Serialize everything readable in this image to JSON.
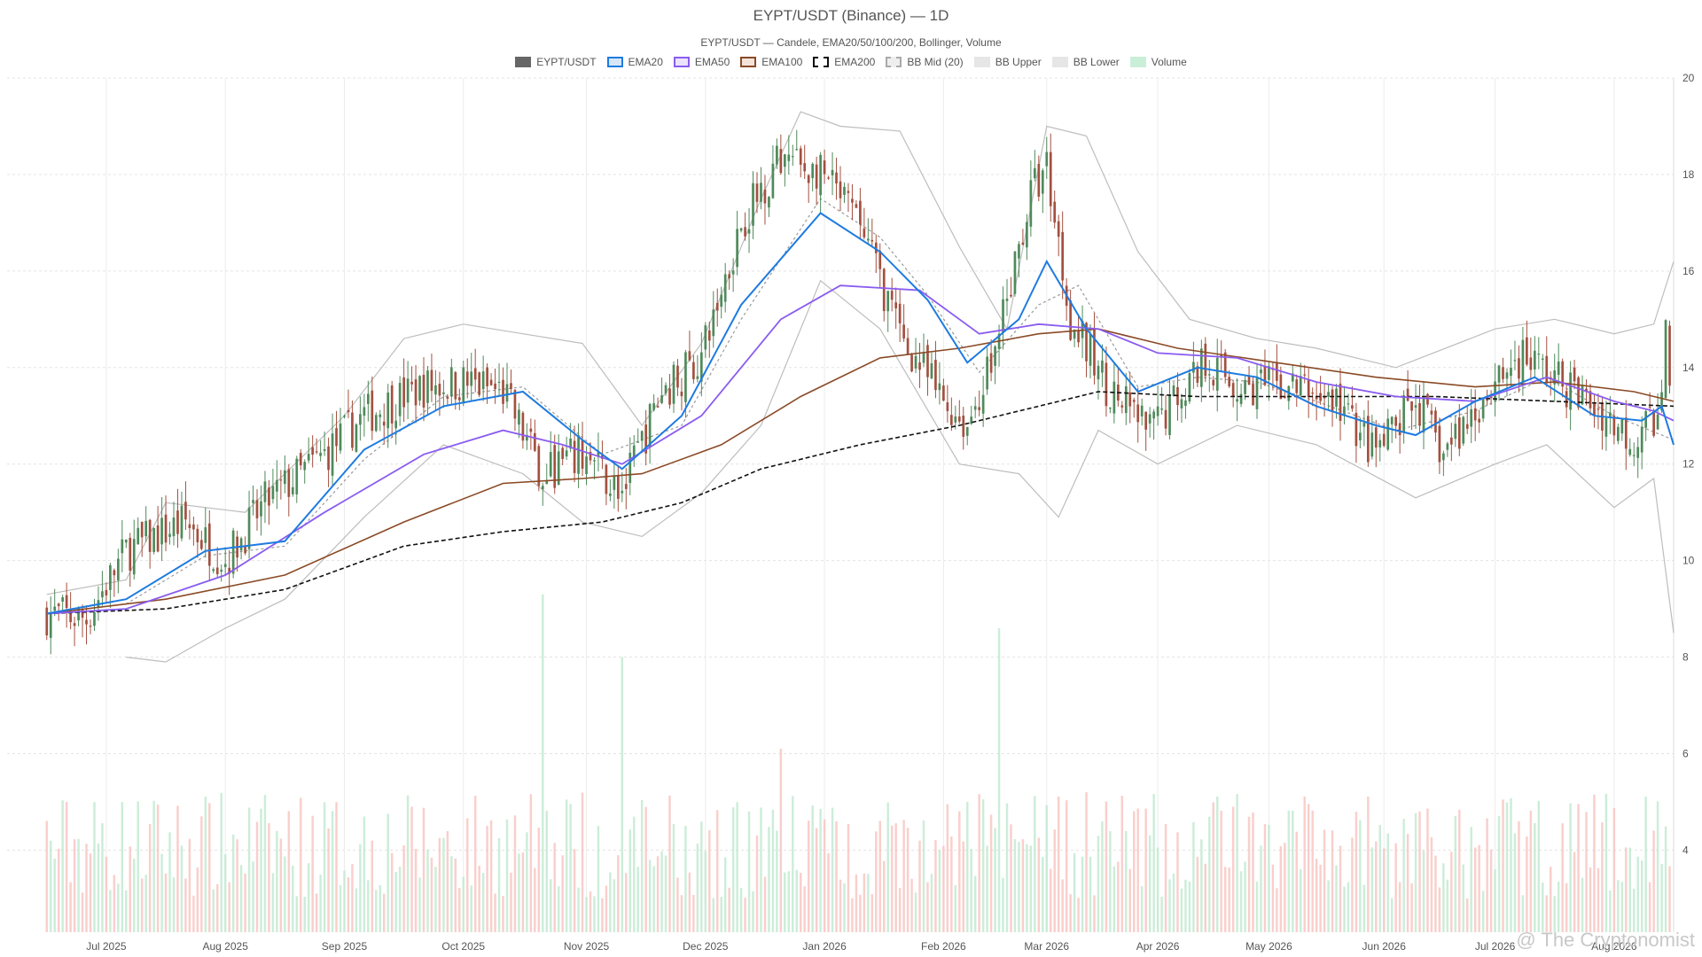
{
  "header": {
    "title": "EYPT/USDT (Binance) — 1D",
    "subtitle": "EYPT/USDT — Candele, EMA20/50/100/200, Bollinger, Volume"
  },
  "legend": [
    {
      "key": "candles",
      "label": "EYPT/USDT",
      "fill": "#666666",
      "border": "#666666",
      "style": "solid"
    },
    {
      "key": "ema20",
      "label": "EMA20",
      "fill": "#d6e6f7",
      "border": "#1e7be0",
      "style": "solid"
    },
    {
      "key": "ema50",
      "label": "EMA50",
      "fill": "#ebe2fb",
      "border": "#8a5cf0",
      "style": "solid"
    },
    {
      "key": "ema100",
      "label": "EMA100",
      "fill": "#f3e4da",
      "border": "#8a4a26",
      "style": "solid"
    },
    {
      "key": "ema200",
      "label": "EMA200",
      "fill": "#ffffff",
      "border": "#111111",
      "style": "dashed"
    },
    {
      "key": "bbmid",
      "label": "BB Mid (20)",
      "fill": "#eeeeee",
      "border": "#aaaaaa",
      "style": "dashed"
    },
    {
      "key": "bbupper",
      "label": "BB Upper",
      "fill": "#e6e6e6",
      "border": "#e6e6e6",
      "style": "solid"
    },
    {
      "key": "bblower",
      "label": "BB Lower",
      "fill": "#e6e6e6",
      "border": "#e6e6e6",
      "style": "solid"
    },
    {
      "key": "volume",
      "label": "Volume",
      "fill": "#c9efd9",
      "border": "#c9efd9",
      "style": "solid"
    }
  ],
  "watermark": "@ The Cryptonomist",
  "chart_data": {
    "type": "candlestick",
    "ylim": [
      2.3,
      20
    ],
    "yticks": [
      4,
      6,
      8,
      10,
      12,
      14,
      16,
      18,
      20
    ],
    "grid": true,
    "legend_position": "top-center",
    "xlim_days": [
      -10,
      410
    ],
    "months": [
      {
        "label": "Jul 2025",
        "day": 15
      },
      {
        "label": "Aug 2025",
        "day": 45
      },
      {
        "label": "Sep 2025",
        "day": 75
      },
      {
        "label": "Oct 2025",
        "day": 105
      },
      {
        "label": "Nov 2025",
        "day": 136
      },
      {
        "label": "Dec 2025",
        "day": 166
      },
      {
        "label": "Jan 2026",
        "day": 196
      },
      {
        "label": "Feb 2026",
        "day": 226
      },
      {
        "label": "Mar 2026",
        "day": 252
      },
      {
        "label": "Apr 2026",
        "day": 280
      },
      {
        "label": "May 2026",
        "day": 308
      },
      {
        "label": "Jun 2026",
        "day": 337
      },
      {
        "label": "Jul 2026",
        "day": 365
      },
      {
        "label": "Aug 2026",
        "day": 395
      }
    ],
    "price_path": [
      {
        "day": 0,
        "close": 8.9
      },
      {
        "day": 10,
        "close": 8.8
      },
      {
        "day": 20,
        "close": 10.2
      },
      {
        "day": 35,
        "close": 10.8
      },
      {
        "day": 45,
        "close": 10.0
      },
      {
        "day": 55,
        "close": 11.2
      },
      {
        "day": 70,
        "close": 12.2
      },
      {
        "day": 80,
        "close": 13.0
      },
      {
        "day": 95,
        "close": 13.6
      },
      {
        "day": 105,
        "close": 13.7
      },
      {
        "day": 115,
        "close": 13.5
      },
      {
        "day": 125,
        "close": 11.8
      },
      {
        "day": 135,
        "close": 12.2
      },
      {
        "day": 145,
        "close": 11.4
      },
      {
        "day": 155,
        "close": 13.5
      },
      {
        "day": 165,
        "close": 14.2
      },
      {
        "day": 175,
        "close": 17.0
      },
      {
        "day": 185,
        "close": 18.4
      },
      {
        "day": 195,
        "close": 18.0
      },
      {
        "day": 205,
        "close": 17.0
      },
      {
        "day": 215,
        "close": 14.7
      },
      {
        "day": 225,
        "close": 13.4
      },
      {
        "day": 232,
        "close": 12.8
      },
      {
        "day": 240,
        "close": 14.6
      },
      {
        "day": 248,
        "close": 17.6
      },
      {
        "day": 252,
        "close": 18.2
      },
      {
        "day": 258,
        "close": 15.0
      },
      {
        "day": 268,
        "close": 13.5
      },
      {
        "day": 278,
        "close": 12.7
      },
      {
        "day": 292,
        "close": 14.2
      },
      {
        "day": 300,
        "close": 13.6
      },
      {
        "day": 315,
        "close": 13.6
      },
      {
        "day": 325,
        "close": 13.3
      },
      {
        "day": 335,
        "close": 12.2
      },
      {
        "day": 345,
        "close": 13.3
      },
      {
        "day": 352,
        "close": 12.2
      },
      {
        "day": 362,
        "close": 13.4
      },
      {
        "day": 372,
        "close": 14.3
      },
      {
        "day": 380,
        "close": 13.8
      },
      {
        "day": 390,
        "close": 13.2
      },
      {
        "day": 400,
        "close": 12.5
      },
      {
        "day": 406,
        "close": 13.0
      },
      {
        "day": 408,
        "close": 14.7
      },
      {
        "day": 409,
        "close": 13.7
      }
    ],
    "ema20": [
      {
        "day": 0,
        "value": 8.9
      },
      {
        "day": 20,
        "value": 9.2
      },
      {
        "day": 40,
        "value": 10.2
      },
      {
        "day": 60,
        "value": 10.4
      },
      {
        "day": 80,
        "value": 12.3
      },
      {
        "day": 100,
        "value": 13.2
      },
      {
        "day": 120,
        "value": 13.5
      },
      {
        "day": 135,
        "value": 12.5
      },
      {
        "day": 145,
        "value": 11.9
      },
      {
        "day": 160,
        "value": 13.0
      },
      {
        "day": 175,
        "value": 15.3
      },
      {
        "day": 195,
        "value": 17.2
      },
      {
        "day": 210,
        "value": 16.4
      },
      {
        "day": 222,
        "value": 15.4
      },
      {
        "day": 232,
        "value": 14.1
      },
      {
        "day": 245,
        "value": 15.0
      },
      {
        "day": 252,
        "value": 16.2
      },
      {
        "day": 262,
        "value": 14.8
      },
      {
        "day": 275,
        "value": 13.5
      },
      {
        "day": 290,
        "value": 14.0
      },
      {
        "day": 305,
        "value": 13.8
      },
      {
        "day": 320,
        "value": 13.2
      },
      {
        "day": 335,
        "value": 12.8
      },
      {
        "day": 345,
        "value": 12.6
      },
      {
        "day": 360,
        "value": 13.3
      },
      {
        "day": 375,
        "value": 13.8
      },
      {
        "day": 390,
        "value": 13.0
      },
      {
        "day": 402,
        "value": 12.9
      },
      {
        "day": 407,
        "value": 13.2
      },
      {
        "day": 410,
        "value": 12.4
      }
    ],
    "ema50": [
      {
        "day": 0,
        "value": 8.9
      },
      {
        "day": 20,
        "value": 9.0
      },
      {
        "day": 45,
        "value": 9.7
      },
      {
        "day": 70,
        "value": 11.0
      },
      {
        "day": 95,
        "value": 12.2
      },
      {
        "day": 115,
        "value": 12.7
      },
      {
        "day": 130,
        "value": 12.4
      },
      {
        "day": 145,
        "value": 12.0
      },
      {
        "day": 165,
        "value": 13.0
      },
      {
        "day": 185,
        "value": 15.0
      },
      {
        "day": 200,
        "value": 15.7
      },
      {
        "day": 220,
        "value": 15.6
      },
      {
        "day": 235,
        "value": 14.7
      },
      {
        "day": 250,
        "value": 14.9
      },
      {
        "day": 265,
        "value": 14.8
      },
      {
        "day": 280,
        "value": 14.3
      },
      {
        "day": 300,
        "value": 14.2
      },
      {
        "day": 320,
        "value": 13.7
      },
      {
        "day": 340,
        "value": 13.4
      },
      {
        "day": 360,
        "value": 13.3
      },
      {
        "day": 378,
        "value": 13.8
      },
      {
        "day": 395,
        "value": 13.3
      },
      {
        "day": 405,
        "value": 13.1
      },
      {
        "day": 410,
        "value": 12.9
      }
    ],
    "ema100": [
      {
        "day": 0,
        "value": 8.9
      },
      {
        "day": 30,
        "value": 9.2
      },
      {
        "day": 60,
        "value": 9.7
      },
      {
        "day": 90,
        "value": 10.8
      },
      {
        "day": 115,
        "value": 11.6
      },
      {
        "day": 135,
        "value": 11.7
      },
      {
        "day": 150,
        "value": 11.8
      },
      {
        "day": 170,
        "value": 12.4
      },
      {
        "day": 190,
        "value": 13.4
      },
      {
        "day": 210,
        "value": 14.2
      },
      {
        "day": 230,
        "value": 14.4
      },
      {
        "day": 250,
        "value": 14.7
      },
      {
        "day": 265,
        "value": 14.8
      },
      {
        "day": 285,
        "value": 14.4
      },
      {
        "day": 310,
        "value": 14.1
      },
      {
        "day": 335,
        "value": 13.8
      },
      {
        "day": 360,
        "value": 13.6
      },
      {
        "day": 380,
        "value": 13.7
      },
      {
        "day": 400,
        "value": 13.5
      },
      {
        "day": 410,
        "value": 13.3
      }
    ],
    "ema200": [
      {
        "day": 0,
        "value": 8.9
      },
      {
        "day": 30,
        "value": 9.0
      },
      {
        "day": 60,
        "value": 9.4
      },
      {
        "day": 90,
        "value": 10.3
      },
      {
        "day": 115,
        "value": 10.6
      },
      {
        "day": 140,
        "value": 10.8
      },
      {
        "day": 160,
        "value": 11.2
      },
      {
        "day": 180,
        "value": 11.9
      },
      {
        "day": 205,
        "value": 12.4
      },
      {
        "day": 230,
        "value": 12.8
      },
      {
        "day": 250,
        "value": 13.2
      },
      {
        "day": 265,
        "value": 13.5
      },
      {
        "day": 290,
        "value": 13.4
      },
      {
        "day": 320,
        "value": 13.4
      },
      {
        "day": 350,
        "value": 13.4
      },
      {
        "day": 380,
        "value": 13.3
      },
      {
        "day": 410,
        "value": 13.2
      }
    ],
    "bb_mid": [
      {
        "day": 0,
        "value": 8.9
      },
      {
        "day": 20,
        "value": 9.1
      },
      {
        "day": 40,
        "value": 10.1
      },
      {
        "day": 60,
        "value": 10.3
      },
      {
        "day": 80,
        "value": 12.1
      },
      {
        "day": 100,
        "value": 13.4
      },
      {
        "day": 120,
        "value": 13.6
      },
      {
        "day": 140,
        "value": 12.2
      },
      {
        "day": 160,
        "value": 12.8
      },
      {
        "day": 175,
        "value": 15.0
      },
      {
        "day": 195,
        "value": 17.5
      },
      {
        "day": 210,
        "value": 16.7
      },
      {
        "day": 222,
        "value": 15.5
      },
      {
        "day": 235,
        "value": 13.9
      },
      {
        "day": 250,
        "value": 15.3
      },
      {
        "day": 260,
        "value": 15.7
      },
      {
        "day": 275,
        "value": 13.6
      },
      {
        "day": 290,
        "value": 13.8
      },
      {
        "day": 305,
        "value": 13.7
      },
      {
        "day": 320,
        "value": 13.3
      },
      {
        "day": 340,
        "value": 12.7
      },
      {
        "day": 360,
        "value": 13.1
      },
      {
        "day": 378,
        "value": 13.8
      },
      {
        "day": 395,
        "value": 13.0
      },
      {
        "day": 410,
        "value": 12.5
      }
    ],
    "bb_upper": [
      {
        "day": 0,
        "value": 9.3
      },
      {
        "day": 20,
        "value": 9.6
      },
      {
        "day": 30,
        "value": 11.2
      },
      {
        "day": 50,
        "value": 11.0
      },
      {
        "day": 75,
        "value": 13.0
      },
      {
        "day": 90,
        "value": 14.6
      },
      {
        "day": 105,
        "value": 14.9
      },
      {
        "day": 120,
        "value": 14.7
      },
      {
        "day": 135,
        "value": 14.5
      },
      {
        "day": 150,
        "value": 12.8
      },
      {
        "day": 165,
        "value": 14.5
      },
      {
        "day": 180,
        "value": 17.5
      },
      {
        "day": 190,
        "value": 19.3
      },
      {
        "day": 200,
        "value": 19.0
      },
      {
        "day": 215,
        "value": 18.9
      },
      {
        "day": 230,
        "value": 16.5
      },
      {
        "day": 242,
        "value": 14.8
      },
      {
        "day": 252,
        "value": 19.0
      },
      {
        "day": 262,
        "value": 18.8
      },
      {
        "day": 275,
        "value": 16.4
      },
      {
        "day": 288,
        "value": 15.0
      },
      {
        "day": 305,
        "value": 14.6
      },
      {
        "day": 320,
        "value": 14.4
      },
      {
        "day": 340,
        "value": 14.0
      },
      {
        "day": 365,
        "value": 14.8
      },
      {
        "day": 380,
        "value": 15.0
      },
      {
        "day": 395,
        "value": 14.7
      },
      {
        "day": 405,
        "value": 14.9
      },
      {
        "day": 410,
        "value": 16.2
      }
    ],
    "bb_lower": [
      {
        "day": 20,
        "value": 8.0
      },
      {
        "day": 30,
        "value": 7.9
      },
      {
        "day": 45,
        "value": 8.6
      },
      {
        "day": 60,
        "value": 9.2
      },
      {
        "day": 80,
        "value": 10.9
      },
      {
        "day": 100,
        "value": 12.4
      },
      {
        "day": 120,
        "value": 11.8
      },
      {
        "day": 135,
        "value": 10.8
      },
      {
        "day": 150,
        "value": 10.5
      },
      {
        "day": 165,
        "value": 11.4
      },
      {
        "day": 180,
        "value": 12.8
      },
      {
        "day": 195,
        "value": 15.8
      },
      {
        "day": 210,
        "value": 14.8
      },
      {
        "day": 230,
        "value": 12.0
      },
      {
        "day": 245,
        "value": 11.8
      },
      {
        "day": 255,
        "value": 10.9
      },
      {
        "day": 265,
        "value": 12.7
      },
      {
        "day": 280,
        "value": 12.0
      },
      {
        "day": 300,
        "value": 12.8
      },
      {
        "day": 320,
        "value": 12.4
      },
      {
        "day": 345,
        "value": 11.3
      },
      {
        "day": 365,
        "value": 12.0
      },
      {
        "day": 378,
        "value": 12.4
      },
      {
        "day": 395,
        "value": 11.1
      },
      {
        "day": 405,
        "value": 11.7
      },
      {
        "day": 410,
        "value": 8.5
      }
    ],
    "volume_spikes": [
      {
        "day": 125,
        "value": 9.3
      },
      {
        "day": 145,
        "value": 8.0
      },
      {
        "day": 185,
        "value": 6.1
      },
      {
        "day": 240,
        "value": 8.6
      },
      {
        "day": 365,
        "value": 3.6
      },
      {
        "day": 400,
        "value": 3.2
      }
    ]
  }
}
